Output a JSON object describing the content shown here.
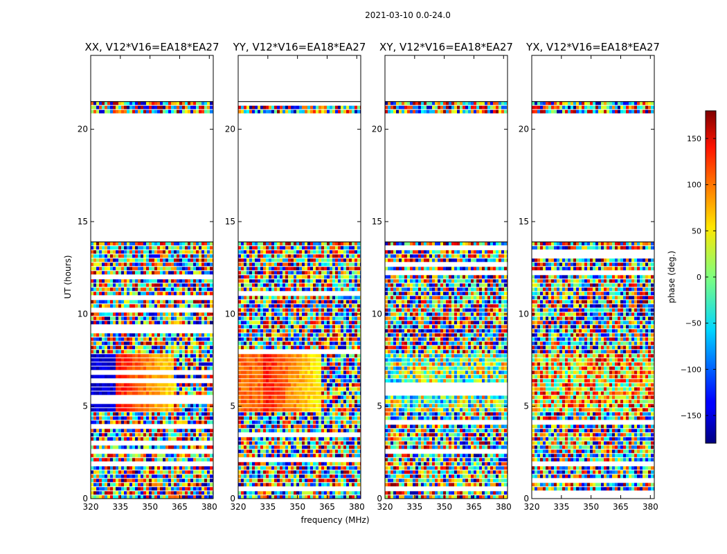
{
  "chart_data": {
    "type": "heatmap",
    "suptitle": "2021-03-10 0.0-24.0",
    "xlabel": "frequency (MHz)",
    "ylabel": "UT (hours)",
    "xlim": [
      320,
      382
    ],
    "ylim": [
      0,
      24
    ],
    "xticks": [
      320,
      335,
      350,
      365,
      380
    ],
    "yticks": [
      0,
      5,
      10,
      15,
      20
    ],
    "panels": [
      {
        "title": "XX, V12*V16=EA18*EA27",
        "pol": "XX"
      },
      {
        "title": "YY, V12*V16=EA18*EA27",
        "pol": "YY"
      },
      {
        "title": "XY, V12*V16=EA18*EA27",
        "pol": "XY"
      },
      {
        "title": "YX, V12*V16=EA18*EA27",
        "pol": "YX"
      }
    ],
    "colorbar": {
      "label": "phase (deg.)",
      "range": [
        -180,
        180
      ],
      "ticks": [
        -150,
        -100,
        -50,
        0,
        50,
        100,
        150
      ],
      "colormap": "jet"
    },
    "data_time_ranges_hours": [
      [
        0.0,
        13.9
      ],
      [
        21.0,
        21.5
      ]
    ],
    "phase_gradient_region": {
      "hours": [
        4.8,
        8.0
      ],
      "phase_at_320MHz": -150,
      "phase_at_345MHz": 130,
      "phase_at_360MHz": 60
    }
  }
}
